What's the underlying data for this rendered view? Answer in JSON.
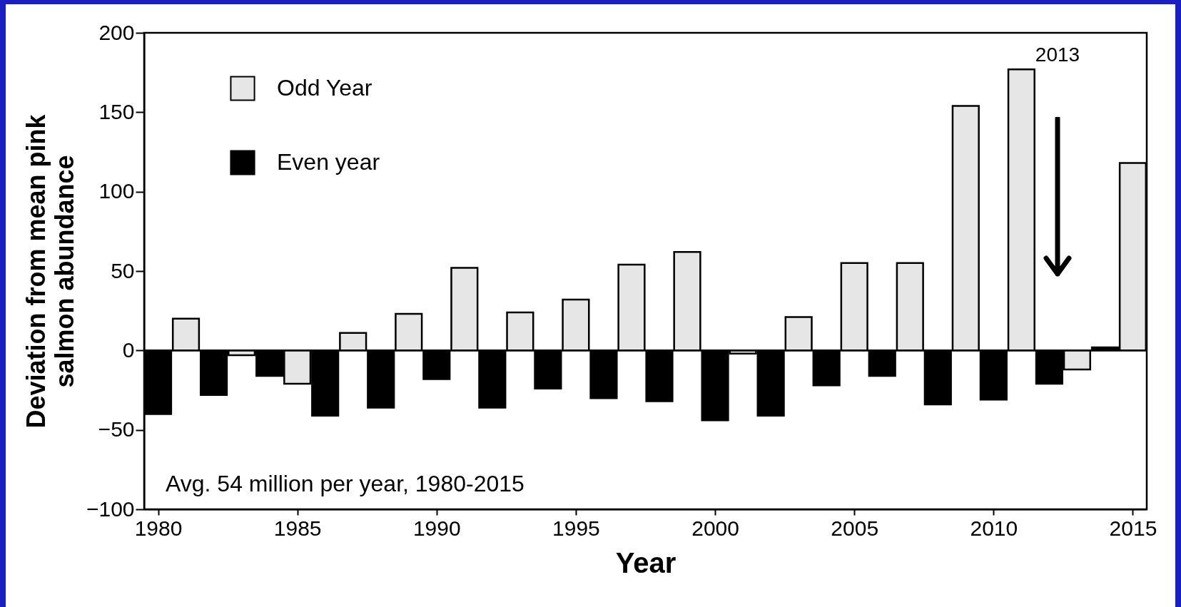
{
  "chart_data": {
    "type": "bar",
    "xlabel": "Year",
    "ylabel": "Deviation from mean pink\nsalmon abundance",
    "xlim": [
      1979.5,
      2015.5
    ],
    "xticks": [
      1980,
      1985,
      1990,
      1995,
      2000,
      2005,
      2010,
      2015
    ],
    "ylim": [
      -100,
      200
    ],
    "yticks": [
      -100,
      -50,
      0,
      50,
      100,
      150,
      200
    ],
    "grid": false,
    "legend": "top left",
    "series": [
      {
        "name": "Odd Year",
        "color": "#e6e6e6",
        "x": [
          1981,
          1983,
          1985,
          1987,
          1989,
          1991,
          1993,
          1995,
          1997,
          1999,
          2001,
          2003,
          2005,
          2007,
          2009,
          2011,
          2013,
          2015
        ],
        "values": [
          20,
          -3,
          -21,
          11,
          23,
          52,
          24,
          32,
          54,
          62,
          -2,
          21,
          55,
          55,
          154,
          177,
          -12,
          118
        ]
      },
      {
        "name": "Even year",
        "color": "#000000",
        "x": [
          1980,
          1982,
          1984,
          1986,
          1988,
          1990,
          1992,
          1994,
          1996,
          1998,
          2000,
          2002,
          2004,
          2006,
          2008,
          2010,
          2012,
          2014
        ],
        "values": [
          -40,
          -28,
          -16,
          -41,
          -36,
          -18,
          -36,
          -24,
          -30,
          -32,
          -44,
          -41,
          -22,
          -16,
          -34,
          -31,
          -21,
          2
        ]
      }
    ],
    "ref_lines": [
      {
        "axis": "y",
        "value": 0
      }
    ],
    "annotations": [
      "Avg. 54 million per year, 1980-2015",
      "2013"
    ]
  }
}
